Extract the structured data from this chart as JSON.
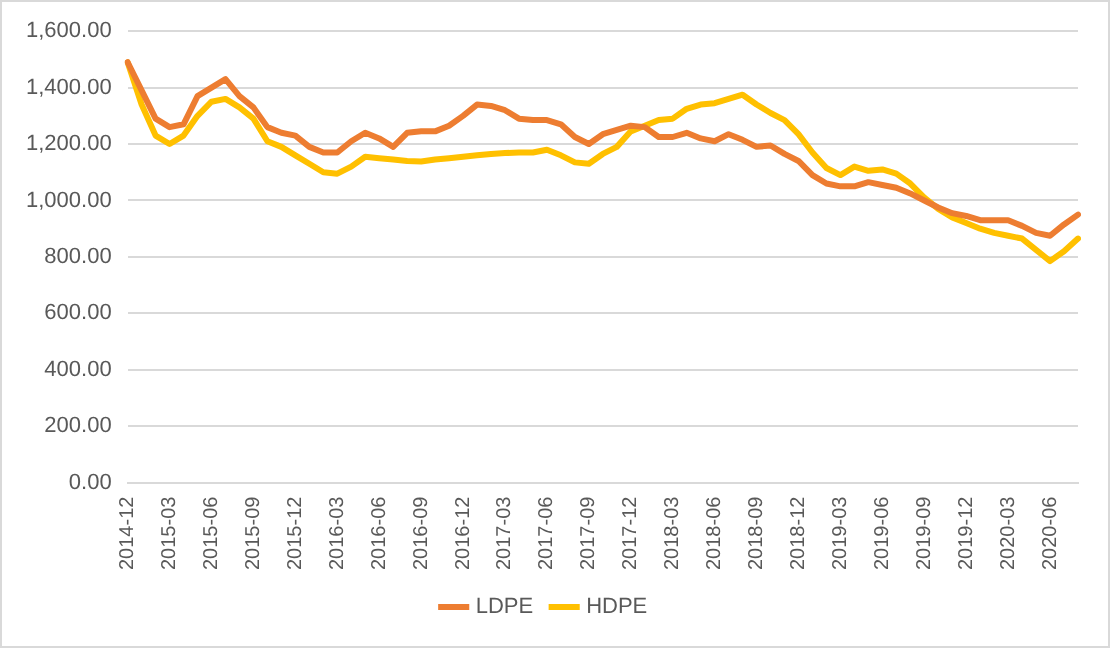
{
  "chart_data": {
    "type": "line",
    "categories": [
      "2014-12",
      null,
      null,
      "2015-03",
      null,
      null,
      "2015-06",
      null,
      null,
      "2015-09",
      null,
      null,
      "2015-12",
      null,
      null,
      "2016-03",
      null,
      null,
      "2016-06",
      null,
      null,
      "2016-09",
      null,
      null,
      "2016-12",
      null,
      null,
      "2017-03",
      null,
      null,
      "2017-06",
      null,
      null,
      "2017-09",
      null,
      null,
      "2017-12",
      null,
      null,
      "2018-03",
      null,
      null,
      "2018-06",
      null,
      null,
      "2018-09",
      null,
      null,
      "2018-12",
      null,
      null,
      "2019-03",
      null,
      null,
      "2019-06",
      null,
      null,
      "2019-09",
      null,
      null,
      "2019-12",
      null,
      null,
      "2020-03",
      null,
      null,
      "2020-06",
      null,
      null
    ],
    "series": [
      {
        "name": "LDPE",
        "color": "#ed7d31",
        "values": [
          1490,
          1390,
          1290,
          1260,
          1270,
          1370,
          1400,
          1430,
          1370,
          1330,
          1260,
          1240,
          1230,
          1190,
          1170,
          1170,
          1210,
          1240,
          1220,
          1190,
          1240,
          1245,
          1245,
          1265,
          1300,
          1340,
          1335,
          1320,
          1290,
          1285,
          1285,
          1270,
          1225,
          1200,
          1235,
          1250,
          1265,
          1260,
          1225,
          1225,
          1240,
          1220,
          1210,
          1235,
          1215,
          1190,
          1195,
          1165,
          1140,
          1090,
          1060,
          1050,
          1050,
          1065,
          1055,
          1045,
          1025,
          1000,
          975,
          955,
          945,
          930,
          930,
          930,
          910,
          885,
          875,
          915,
          950
        ]
      },
      {
        "name": "HDPE",
        "color": "#ffc000",
        "values": [
          1490,
          1340,
          1230,
          1200,
          1230,
          1300,
          1350,
          1360,
          1330,
          1290,
          1210,
          1190,
          1160,
          1130,
          1100,
          1095,
          1120,
          1155,
          1150,
          1145,
          1140,
          1138,
          1145,
          1150,
          1155,
          1160,
          1165,
          1168,
          1170,
          1170,
          1180,
          1160,
          1135,
          1130,
          1165,
          1190,
          1245,
          1265,
          1285,
          1290,
          1325,
          1340,
          1345,
          1360,
          1375,
          1340,
          1310,
          1285,
          1235,
          1170,
          1115,
          1090,
          1120,
          1105,
          1110,
          1095,
          1060,
          1010,
          970,
          940,
          920,
          900,
          885,
          875,
          865,
          825,
          785,
          820,
          865
        ]
      }
    ],
    "ylim": [
      0,
      1600
    ],
    "yticks": [
      {
        "value": 0,
        "label": "0.00"
      },
      {
        "value": 200,
        "label": "200.00"
      },
      {
        "value": 400,
        "label": "400.00"
      },
      {
        "value": 600,
        "label": "600.00"
      },
      {
        "value": 800,
        "label": "800.00"
      },
      {
        "value": 1000,
        "label": "1,000.00"
      },
      {
        "value": 1200,
        "label": "1,200.00"
      },
      {
        "value": 1400,
        "label": "1,400.00"
      },
      {
        "value": 1600,
        "label": "1,600.00"
      }
    ],
    "grid": "y",
    "legend": "bottom",
    "marker": "none",
    "line_style": "solid"
  }
}
